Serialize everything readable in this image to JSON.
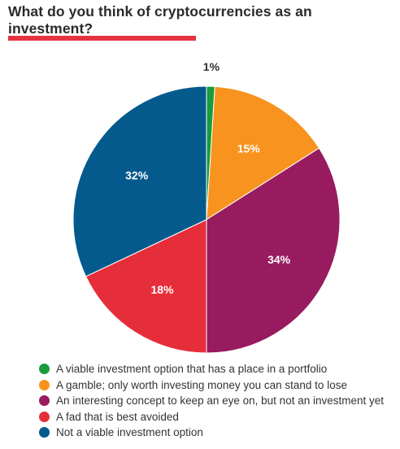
{
  "title": "What do you think of cryptocurrencies as an investment?",
  "accent_color": "#e5343f",
  "chart_data": {
    "type": "pie",
    "title": "What do you think of cryptocurrencies as an investment?",
    "slices": [
      {
        "label": "A viable investment option that has a place in a portfolio",
        "value": 1,
        "display": "1%",
        "color": "#1a9b3c"
      },
      {
        "label": "A gamble; only worth investing money you can stand to lose",
        "value": 15,
        "display": "15%",
        "color": "#f7931e"
      },
      {
        "label": "An interesting concept to keep an eye on, but not an investment yet",
        "value": 34,
        "display": "34%",
        "color": "#971b5e"
      },
      {
        "label": "A fad that is best avoided",
        "value": 18,
        "display": "18%",
        "color": "#e62d3a"
      },
      {
        "label": "Not a viable investment option",
        "value": 32,
        "display": "32%",
        "color": "#045a8d"
      }
    ],
    "legend_position": "bottom"
  }
}
